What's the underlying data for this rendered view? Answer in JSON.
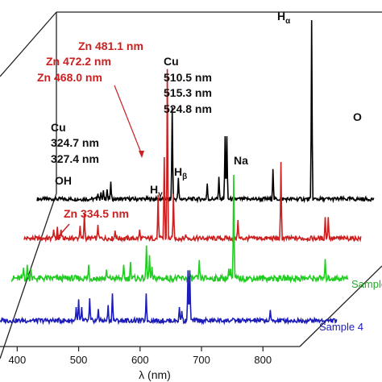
{
  "chart_data": {
    "type": "line",
    "layout": "3d-waterfall",
    "title": "",
    "xlabel": "λ (nm)",
    "ylabel": "",
    "xlim": [
      372,
      860
    ],
    "x_ticks": [
      400,
      500,
      600,
      700,
      800
    ],
    "grid": false,
    "series": [
      {
        "name": "",
        "color": "#000000",
        "baseline": 0.5,
        "peaks": [
          [
            471,
            0.55
          ],
          [
            476,
            0.7
          ],
          [
            480,
            0.9
          ],
          [
            486,
            1.0
          ],
          [
            492,
            1.8
          ],
          [
            592,
            9.5
          ],
          [
            602,
            2.2
          ],
          [
            649,
            1.6
          ],
          [
            668,
            2.3
          ],
          [
            678,
            6.5
          ],
          [
            681,
            6.5
          ],
          [
            756,
            3.1
          ],
          [
            819,
            18.5
          ],
          [
            924,
            8.7
          ]
        ]
      },
      {
        "name": "",
        "color": "#cc1f1f",
        "baseline": 0.6,
        "peaks": [
          [
            420,
            0.9
          ],
          [
            426,
            1.2
          ],
          [
            432,
            0.9
          ],
          [
            463,
            1.3
          ],
          [
            470,
            2.6
          ],
          [
            492,
            1.4
          ],
          [
            520,
            0.8
          ],
          [
            560,
            0.9
          ],
          [
            590,
            4.5
          ],
          [
            600,
            8.4
          ],
          [
            605,
            17.5
          ],
          [
            615,
            4.6
          ],
          [
            635,
            0.4
          ],
          [
            720,
            1.9
          ],
          [
            790,
            7.9
          ],
          [
            862,
            2.2
          ],
          [
            867,
            2.2
          ]
        ]
      },
      {
        "name": "Sample",
        "color": "#22cc22",
        "baseline": 0.8,
        "peaks": [
          [
            392,
            1.1
          ],
          [
            398,
            1.4
          ],
          [
            404,
            1.0
          ],
          [
            498,
            1.4
          ],
          [
            527,
            0.9
          ],
          [
            555,
            1.4
          ],
          [
            566,
            1.7
          ],
          [
            592,
            3.4
          ],
          [
            597,
            2.4
          ],
          [
            601,
            1.2
          ],
          [
            678,
            1.9
          ],
          [
            726,
            1.0
          ],
          [
            729,
            1.0
          ],
          [
            734,
            10.7
          ],
          [
            883,
            2.0
          ]
        ]
      },
      {
        "name": "Sample 4",
        "color": "#1c1cb8",
        "baseline": 0.6,
        "peaks": [
          [
            496,
            1.4
          ],
          [
            500,
            2.2
          ],
          [
            505,
            1.4
          ],
          [
            518,
            2.3
          ],
          [
            532,
            1.2
          ],
          [
            548,
            1.6
          ],
          [
            555,
            2.8
          ],
          [
            610,
            2.8
          ],
          [
            664,
            1.4
          ],
          [
            668,
            1.0
          ],
          [
            678,
            5.2
          ],
          [
            681,
            5.2
          ],
          [
            812,
            1.1
          ]
        ]
      }
    ],
    "annotations": [
      {
        "text": "Zn 481.1 nm",
        "color": "#cc1f1f"
      },
      {
        "text": "Zn 472.2 nm",
        "color": "#cc1f1f"
      },
      {
        "text": "Zn 468.0 nm",
        "color": "#cc1f1f"
      },
      {
        "text": "Zn 334.5 nm",
        "color": "#cc1f1f"
      },
      {
        "text": "Cu",
        "color": "#111111"
      },
      {
        "text": "510.5 nm",
        "color": "#111111"
      },
      {
        "text": "515.3 nm",
        "color": "#111111"
      },
      {
        "text": "524.8 nm",
        "color": "#111111"
      },
      {
        "text": "Cu",
        "color": "#111111"
      },
      {
        "text": "324.7 nm",
        "color": "#111111"
      },
      {
        "text": "327.4 nm",
        "color": "#111111"
      },
      {
        "text": "OH",
        "color": "#111111"
      },
      {
        "text": "H",
        "sub": "γ",
        "color": "#111111"
      },
      {
        "text": "H",
        "sub": "β",
        "color": "#111111"
      },
      {
        "text": "Na",
        "color": "#111111"
      },
      {
        "text": "H",
        "sub": "α",
        "color": "#111111"
      },
      {
        "text": "O",
        "color": "#111111"
      }
    ]
  }
}
